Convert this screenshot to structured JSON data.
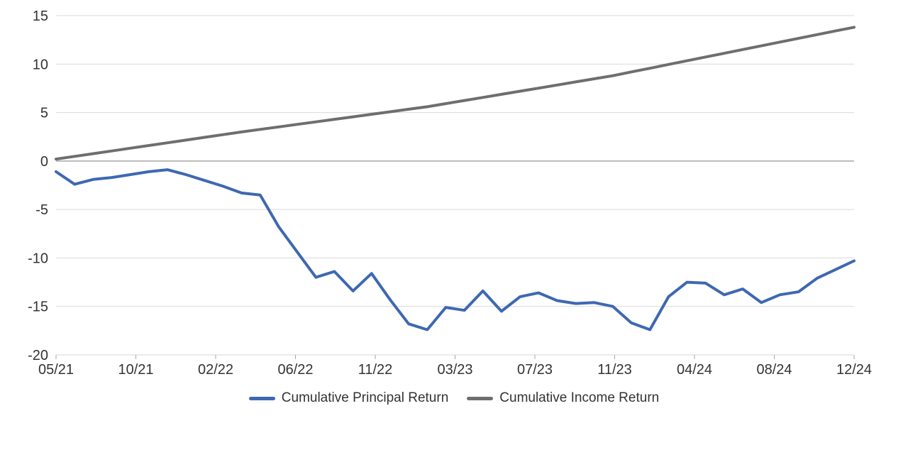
{
  "chart_data": {
    "type": "line",
    "title": "",
    "xlabel": "",
    "ylabel": "",
    "categories": [
      "05/21",
      "06/21",
      "07/21",
      "08/21",
      "09/21",
      "10/21",
      "11/21",
      "12/21",
      "01/22",
      "02/22",
      "03/22",
      "04/22",
      "05/22",
      "06/22",
      "07/22",
      "08/22",
      "09/22",
      "10/22",
      "11/22",
      "12/22",
      "01/23",
      "02/23",
      "03/23",
      "04/23",
      "05/23",
      "06/23",
      "07/23",
      "08/23",
      "09/23",
      "10/23",
      "11/23",
      "12/23",
      "01/24",
      "02/24",
      "03/24",
      "04/24",
      "05/24",
      "06/24",
      "07/24",
      "08/24",
      "09/24",
      "10/24",
      "11/24",
      "12/24"
    ],
    "series": [
      {
        "name": "Cumulative Principal Return",
        "color": "#3E68B1",
        "values": [
          -1.1,
          -2.4,
          -1.9,
          -1.7,
          -1.4,
          -1.1,
          -0.9,
          -1.4,
          -2.0,
          -2.6,
          -3.3,
          -3.5,
          -6.8,
          -9.4,
          -12.0,
          -11.4,
          -13.4,
          -11.6,
          -14.3,
          -16.8,
          -17.4,
          -15.1,
          -15.4,
          -13.4,
          -15.5,
          -14.0,
          -13.6,
          -14.4,
          -14.7,
          -14.6,
          -15.0,
          -16.7,
          -17.4,
          -14.0,
          -12.5,
          -12.6,
          -13.8,
          -13.2,
          -14.6,
          -13.8,
          -13.5,
          -12.1,
          -11.2,
          -10.3
        ]
      },
      {
        "name": "Cumulative Income Return",
        "color": "#6E6E6E",
        "values": [
          0.2,
          0.48,
          0.76,
          1.04,
          1.32,
          1.6,
          1.88,
          2.16,
          2.44,
          2.72,
          3.0,
          3.26,
          3.52,
          3.78,
          4.04,
          4.3,
          4.56,
          4.82,
          5.08,
          5.34,
          5.6,
          5.92,
          6.24,
          6.56,
          6.88,
          7.2,
          7.52,
          7.84,
          8.16,
          8.48,
          8.8,
          9.19,
          9.57,
          9.96,
          10.34,
          10.73,
          11.11,
          11.5,
          11.88,
          12.27,
          12.65,
          13.04,
          13.42,
          13.8
        ]
      }
    ],
    "x_tick_labels": [
      "05/21",
      "10/21",
      "02/22",
      "06/22",
      "11/22",
      "03/23",
      "07/23",
      "11/23",
      "04/24",
      "08/24",
      "12/24"
    ],
    "y_ticks": [
      15,
      10,
      5,
      0,
      -5,
      -10,
      -15,
      -20
    ],
    "ylim": [
      -20,
      15
    ],
    "grid": "horizontal-only",
    "zero_line_emphasized": true,
    "legend_position": "bottom-center"
  },
  "colors": {
    "background": "#ffffff",
    "gridline": "#d9d9d9",
    "zero_line": "#a8a8a8",
    "axis_tick": "#a8a8a8",
    "text": "#333333"
  }
}
